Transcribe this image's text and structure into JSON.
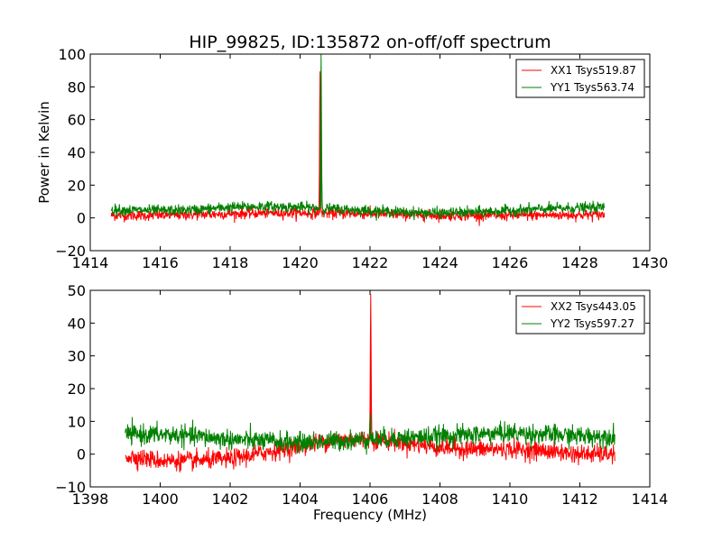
{
  "chart_data": [
    {
      "type": "line",
      "title": "HIP_99825, ID:135872 on-off/off spectrum",
      "xlabel": "",
      "ylabel": "Power in Kelvin",
      "xlim": [
        1414,
        1430
      ],
      "ylim": [
        -20,
        100
      ],
      "xticks": [
        "1414",
        "1416",
        "1418",
        "1420",
        "1422",
        "1424",
        "1426",
        "1428",
        "1430"
      ],
      "yticks": [
        "−20",
        "0",
        "20",
        "40",
        "60",
        "80",
        "100"
      ],
      "legend_position": "top-right",
      "data_range_x": [
        1414.6,
        1428.7
      ],
      "series": [
        {
          "name": "XX1 Tsys519.87",
          "color": "#ff0000",
          "baseline": [
            [
              1414.6,
              1.5
            ],
            [
              1416,
              1.5
            ],
            [
              1418,
              2.5
            ],
            [
              1419,
              3
            ],
            [
              1420,
              3
            ],
            [
              1422,
              2.5
            ],
            [
              1424,
              1.5
            ],
            [
              1426,
              1.5
            ],
            [
              1428.7,
              2
            ]
          ],
          "noise": 1.6,
          "peak": {
            "x": 1420.57,
            "y": 88
          }
        },
        {
          "name": "YY1 Tsys563.74",
          "color": "#008000",
          "baseline": [
            [
              1414.6,
              5
            ],
            [
              1416,
              4.5
            ],
            [
              1417,
              5
            ],
            [
              1418,
              6.5
            ],
            [
              1419,
              7
            ],
            [
              1420,
              6.5
            ],
            [
              1421,
              5.5
            ],
            [
              1422,
              4.5
            ],
            [
              1423,
              3.5
            ],
            [
              1424,
              3
            ],
            [
              1425,
              3.5
            ],
            [
              1426,
              4.5
            ],
            [
              1427,
              5.5
            ],
            [
              1428.7,
              6.5
            ]
          ],
          "noise": 1.6,
          "peak": {
            "x": 1420.6,
            "y": 100
          }
        }
      ]
    },
    {
      "type": "line",
      "title": "",
      "xlabel": "Frequency (MHz)",
      "ylabel": "",
      "xlim": [
        1398,
        1414
      ],
      "ylim": [
        -10,
        50
      ],
      "xticks": [
        "1398",
        "1400",
        "1402",
        "1404",
        "1406",
        "1408",
        "1410",
        "1412",
        "1414"
      ],
      "yticks": [
        "−10",
        "0",
        "10",
        "20",
        "30",
        "40",
        "50"
      ],
      "legend_position": "top-right",
      "data_range_x": [
        1399,
        1413
      ],
      "series": [
        {
          "name": "XX2 Tsys443.05",
          "color": "#ff0000",
          "baseline": [
            [
              1399,
              -0.5
            ],
            [
              1400,
              -2
            ],
            [
              1401,
              -2
            ],
            [
              1402,
              -1.5
            ],
            [
              1403,
              0.5
            ],
            [
              1404,
              2.5
            ],
            [
              1405,
              4.5
            ],
            [
              1406,
              4.5
            ],
            [
              1407,
              3.5
            ],
            [
              1408,
              2
            ],
            [
              1409,
              1.5
            ],
            [
              1410,
              1.5
            ],
            [
              1411,
              1
            ],
            [
              1412,
              0
            ],
            [
              1413,
              0
            ]
          ],
          "noise": 1.4,
          "peak": {
            "x": 1406.02,
            "y": 47
          }
        },
        {
          "name": "YY2 Tsys597.27",
          "color": "#008000",
          "baseline": [
            [
              1399,
              6
            ],
            [
              1400,
              6
            ],
            [
              1401,
              5.5
            ],
            [
              1402,
              4.5
            ],
            [
              1403,
              4
            ],
            [
              1404,
              3.5
            ],
            [
              1405,
              4
            ],
            [
              1406,
              4.5
            ],
            [
              1407,
              5
            ],
            [
              1408,
              5.5
            ],
            [
              1409,
              6
            ],
            [
              1410,
              6.5
            ],
            [
              1411,
              6
            ],
            [
              1412,
              5.5
            ],
            [
              1413,
              5.5
            ]
          ],
          "noise": 1.5,
          "peak": {
            "x": 1406.0,
            "y": 12
          }
        }
      ]
    }
  ]
}
